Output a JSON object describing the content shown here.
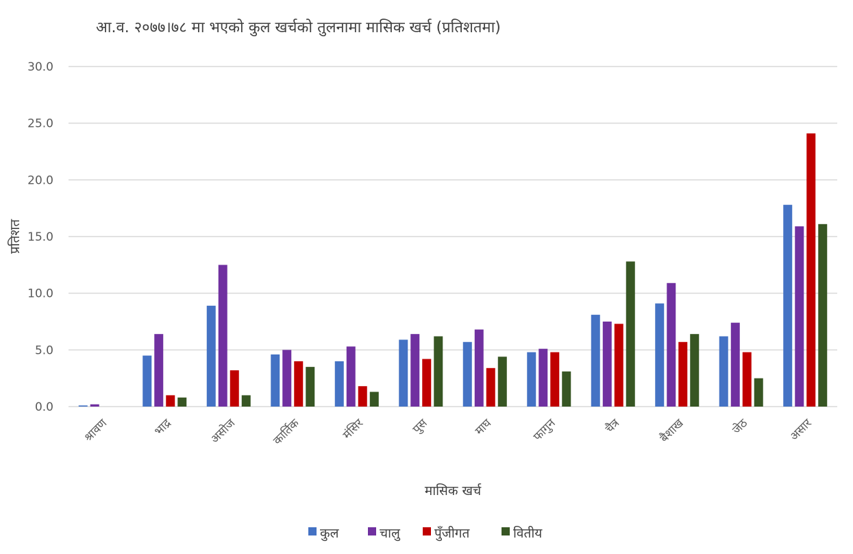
{
  "chart_data": {
    "type": "bar",
    "title": "आ.व. २०७७।७८ मा भएको कुल खर्चको तुलनामा मासिक खर्च (प्रतिशतमा)",
    "xlabel": "मासिक खर्च",
    "ylabel": "प्रतिशत",
    "ylim": [
      0,
      30
    ],
    "yticks": [
      "0.0",
      "5.0",
      "10.0",
      "15.0",
      "20.0",
      "25.0",
      "30.0"
    ],
    "grid": true,
    "legend_position": "bottom",
    "categories": [
      "श्रावण",
      "भाद्र",
      "असोज",
      "कार्तिक",
      "मंसिर",
      "पुस",
      "माघ",
      "फागुन",
      "चैत्र",
      "बैशाख",
      "जेठ",
      "असार"
    ],
    "series": [
      {
        "name": "कुल",
        "color": "#4472c4",
        "values": [
          0.1,
          4.5,
          8.9,
          4.6,
          4.0,
          5.9,
          5.7,
          4.8,
          8.1,
          9.1,
          6.2,
          17.8
        ]
      },
      {
        "name": "चालु",
        "color": "#7030a0",
        "values": [
          0.2,
          6.4,
          12.5,
          5.0,
          5.3,
          6.4,
          6.8,
          5.1,
          7.5,
          10.9,
          7.4,
          15.9
        ]
      },
      {
        "name": "पुँजीगत",
        "color": "#c00000",
        "values": [
          0.0,
          1.0,
          3.2,
          4.0,
          1.8,
          4.2,
          3.4,
          4.8,
          7.3,
          5.7,
          4.8,
          24.1
        ]
      },
      {
        "name": "वितीय",
        "color": "#375623",
        "values": [
          0.0,
          0.8,
          1.0,
          3.5,
          1.3,
          6.2,
          4.4,
          3.1,
          12.8,
          6.4,
          2.5,
          16.1
        ]
      }
    ]
  }
}
